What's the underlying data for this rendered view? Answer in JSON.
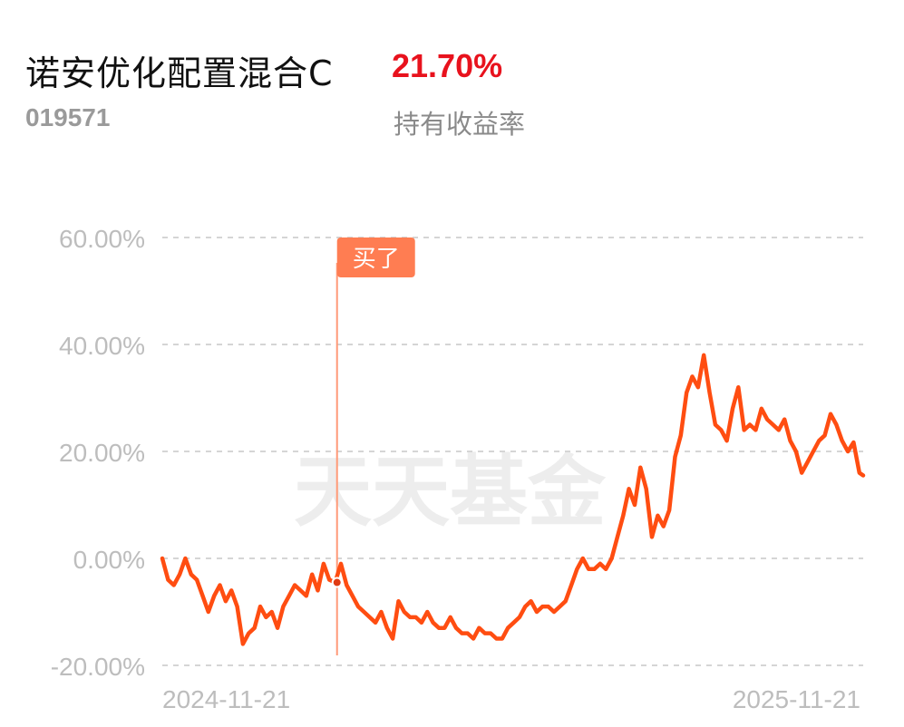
{
  "header": {
    "fund_name": "诺安优化配置混合C",
    "fund_code": "019571",
    "holding_return": "21.70%",
    "holding_return_label": "持有收益率"
  },
  "colors": {
    "line": "#ff4d11",
    "marker_line": "#ff9a78",
    "marker_bg": "#ff7d52",
    "return_red": "#e8121d",
    "grid": "#d5d5d5",
    "tick": "#bdbdbd",
    "watermark": "#ededed"
  },
  "watermark": "天天基金",
  "chart_data": {
    "type": "line",
    "title": "",
    "xlabel": "",
    "ylabel": "",
    "x_tick_labels": [
      "2024-11-21",
      "2025-11-21"
    ],
    "xlim": [
      "2024-11-21",
      "2025-11-21"
    ],
    "y_ticks": [
      60,
      40,
      20,
      0,
      -20
    ],
    "y_tick_labels": [
      "60.00%",
      "40.00%",
      "20.00%",
      "0.00%",
      "-20.00%"
    ],
    "ylim": [
      -20,
      60
    ],
    "y_unit": "%",
    "grid": true,
    "buy_marker": {
      "label": "买了",
      "date": "2025-02-20",
      "value": -4.5
    },
    "series": [
      {
        "x": [
          "2024-11-21",
          "2024-11-24",
          "2024-11-27",
          "2024-11-30",
          "2024-12-03",
          "2024-12-06",
          "2024-12-09",
          "2024-12-12",
          "2024-12-15",
          "2024-12-18",
          "2024-12-21",
          "2024-12-24",
          "2024-12-27",
          "2024-12-30",
          "2025-01-02",
          "2025-01-05",
          "2025-01-08",
          "2025-01-11",
          "2025-01-14",
          "2025-01-17",
          "2025-01-20",
          "2025-01-23",
          "2025-01-26",
          "2025-01-29",
          "2025-02-01",
          "2025-02-04",
          "2025-02-07",
          "2025-02-10",
          "2025-02-13",
          "2025-02-16",
          "2025-02-19",
          "2025-02-22",
          "2025-02-25",
          "2025-02-28",
          "2025-03-03",
          "2025-03-06",
          "2025-03-09",
          "2025-03-12",
          "2025-03-15",
          "2025-03-18",
          "2025-03-21",
          "2025-03-24",
          "2025-03-27",
          "2025-03-30",
          "2025-04-02",
          "2025-04-05",
          "2025-04-08",
          "2025-04-11",
          "2025-04-14",
          "2025-04-17",
          "2025-04-20",
          "2025-04-23",
          "2025-04-26",
          "2025-04-29",
          "2025-05-02",
          "2025-05-05",
          "2025-05-08",
          "2025-05-11",
          "2025-05-14",
          "2025-05-17",
          "2025-05-20",
          "2025-05-23",
          "2025-05-26",
          "2025-05-29",
          "2025-06-01",
          "2025-06-04",
          "2025-06-07",
          "2025-06-10",
          "2025-06-13",
          "2025-06-16",
          "2025-06-19",
          "2025-06-22",
          "2025-06-25",
          "2025-06-28",
          "2025-07-01",
          "2025-07-04",
          "2025-07-07",
          "2025-07-10",
          "2025-07-13",
          "2025-07-16",
          "2025-07-19",
          "2025-07-22",
          "2025-07-25",
          "2025-07-28",
          "2025-07-31",
          "2025-08-03",
          "2025-08-06",
          "2025-08-09",
          "2025-08-12",
          "2025-08-15",
          "2025-08-18",
          "2025-08-21",
          "2025-08-24",
          "2025-08-27",
          "2025-08-30",
          "2025-09-02",
          "2025-09-05",
          "2025-09-08",
          "2025-09-11",
          "2025-09-14",
          "2025-09-17",
          "2025-09-20",
          "2025-09-23",
          "2025-09-26",
          "2025-09-29",
          "2025-10-02",
          "2025-10-05",
          "2025-10-08",
          "2025-10-11",
          "2025-10-14",
          "2025-10-17",
          "2025-10-20",
          "2025-10-23",
          "2025-10-26",
          "2025-10-29",
          "2025-11-01",
          "2025-11-04",
          "2025-11-07",
          "2025-11-10",
          "2025-11-13",
          "2025-11-16",
          "2025-11-19",
          "2025-11-21"
        ],
        "y": [
          0,
          -4,
          -5,
          -3,
          0,
          -3,
          -4,
          -7,
          -10,
          -7,
          -5,
          -8,
          -6,
          -9,
          -16,
          -14,
          -13,
          -9,
          -11,
          -10,
          -13,
          -9,
          -7,
          -5,
          -6,
          -7,
          -3,
          -6,
          -1,
          -4,
          -4.5,
          -1,
          -5,
          -7,
          -9,
          -10,
          -11,
          -12,
          -10,
          -13,
          -15,
          -8,
          -10,
          -11,
          -11,
          -12,
          -10,
          -12,
          -13,
          -13,
          -11,
          -13,
          -14,
          -14,
          -15,
          -13,
          -14,
          -14,
          -15,
          -15,
          -13,
          -12,
          -11,
          -9,
          -8,
          -10,
          -9,
          -9,
          -10,
          -9,
          -8,
          -5,
          -2,
          0,
          -2,
          -2,
          -1,
          -2,
          0,
          4,
          8,
          13,
          10,
          17,
          13,
          4,
          8,
          6,
          9,
          19,
          23,
          31,
          34,
          32,
          38,
          31,
          25,
          24,
          22,
          28,
          32,
          24,
          25,
          24,
          28,
          26,
          25,
          24,
          26,
          22,
          20,
          16,
          18,
          20,
          22,
          23,
          27,
          25,
          22,
          20,
          21.7,
          16,
          15.5
        ],
        "color_key": "line"
      }
    ]
  }
}
